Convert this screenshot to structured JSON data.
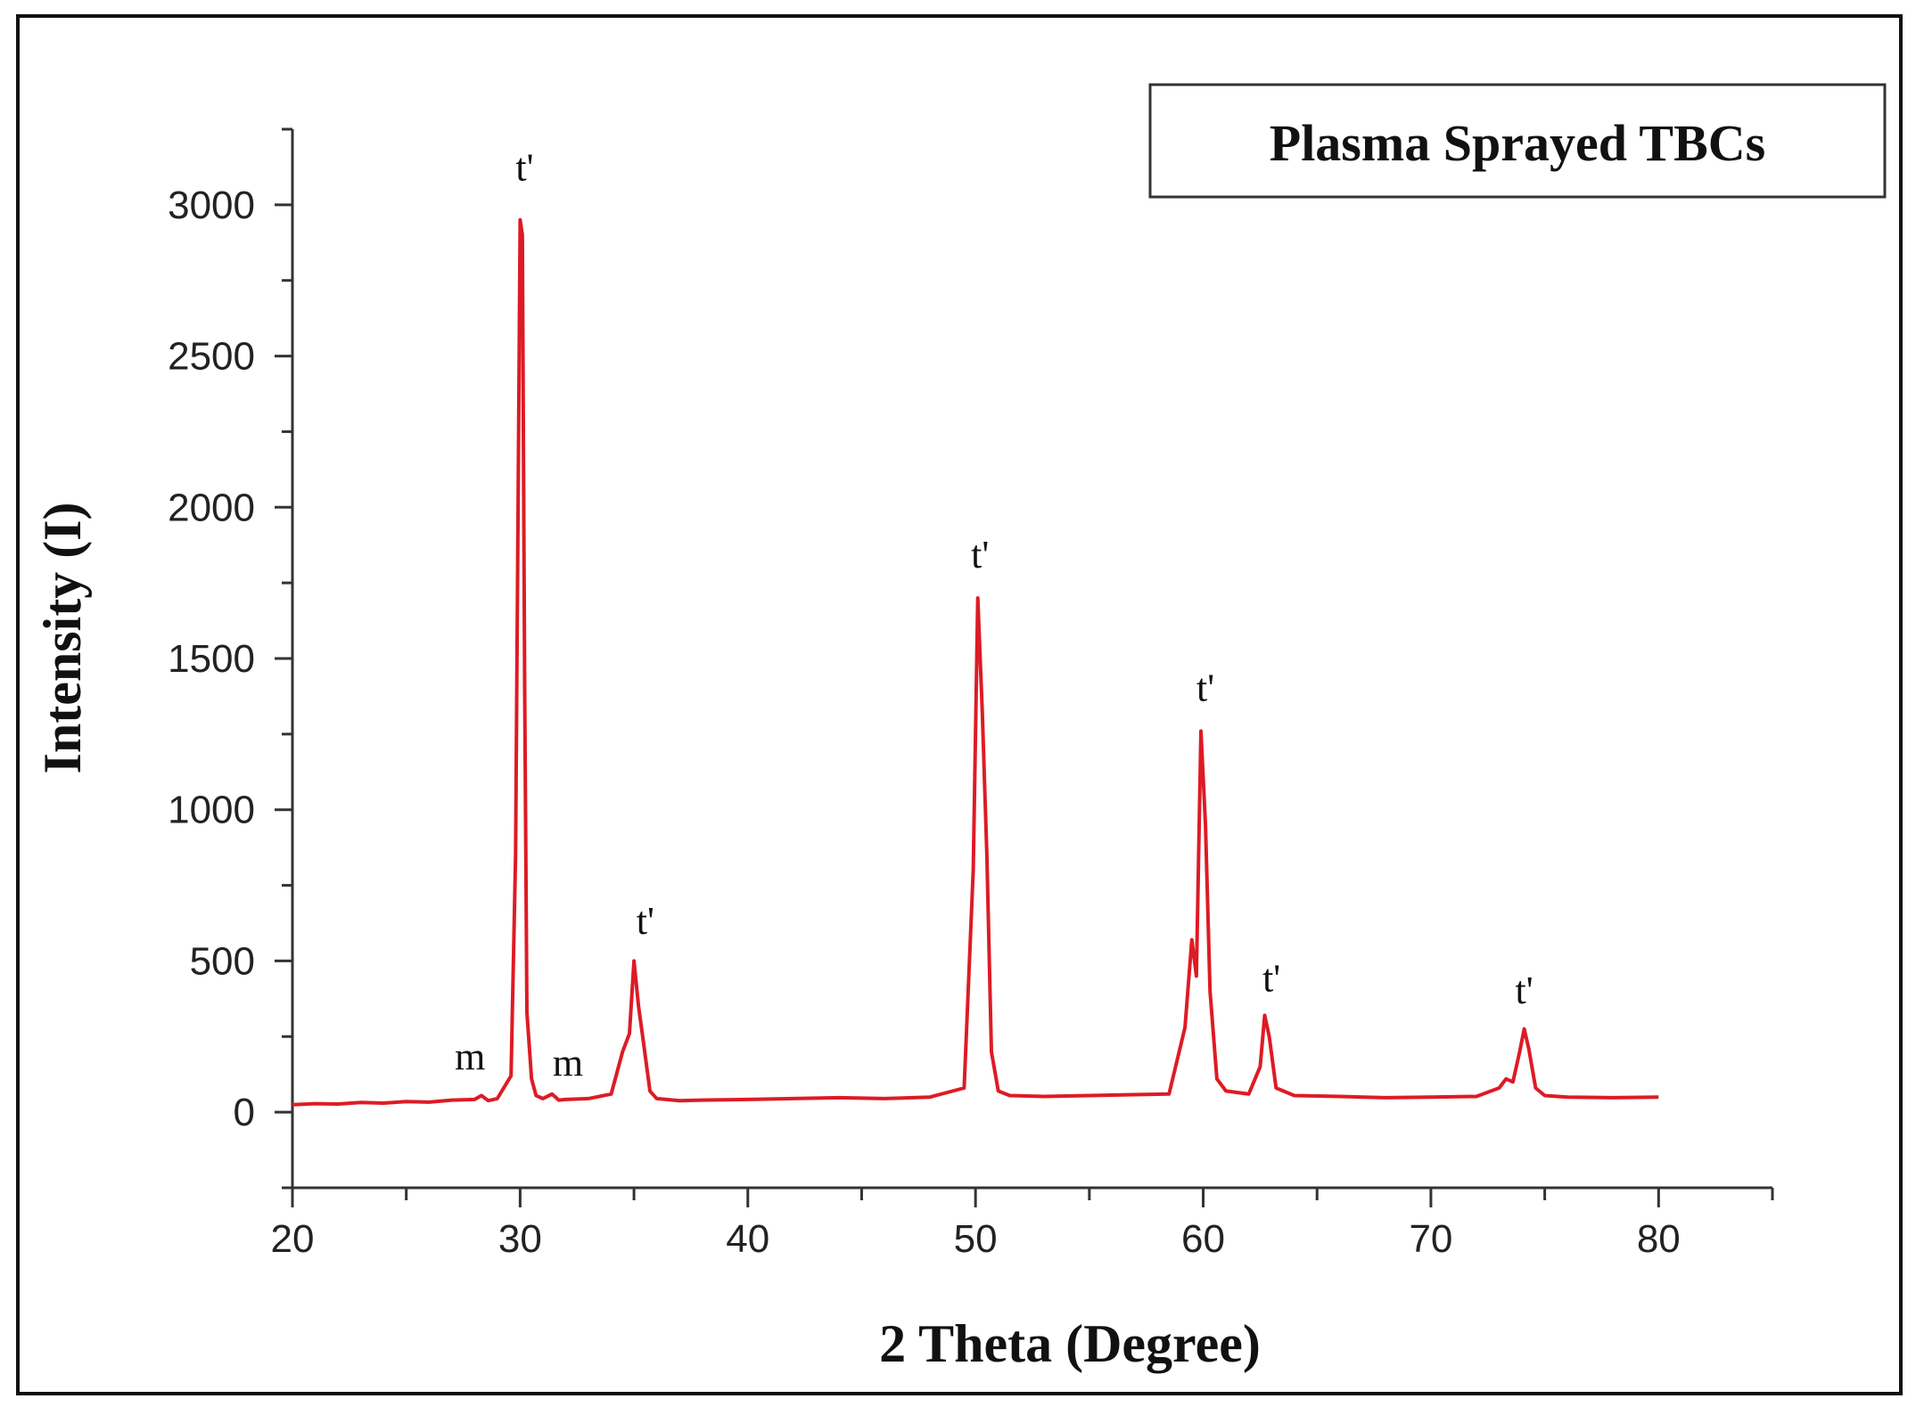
{
  "chart_data": {
    "type": "line",
    "xlabel": "2 Theta (Degree)",
    "ylabel": "Intensity (I)",
    "xlim": [
      20,
      85
    ],
    "ylim": [
      -250,
      3250
    ],
    "xticks": [
      "20",
      "30",
      "40",
      "50",
      "60",
      "70",
      "80"
    ],
    "yticks": [
      "0",
      "500",
      "1000",
      "1500",
      "2000",
      "2500",
      "3000"
    ],
    "legend": {
      "label": "Plasma Sprayed TBCs",
      "position": "top-right"
    },
    "grid": false,
    "color": "#dd1b25",
    "series": [
      {
        "name": "Plasma Sprayed TBCs",
        "x": [
          20,
          21,
          22,
          23,
          24,
          25,
          26,
          27,
          28,
          28.3,
          28.6,
          29,
          29.6,
          29.8,
          30.0,
          30.1,
          30.2,
          30.3,
          30.5,
          30.7,
          31.0,
          31.4,
          31.7,
          32,
          33,
          34,
          34.5,
          34.8,
          35.0,
          35.2,
          35.4,
          35.7,
          36,
          37,
          38,
          40,
          42,
          44,
          46,
          48,
          49.5,
          49.9,
          50.1,
          50.3,
          50.5,
          50.7,
          51.0,
          51.5,
          53,
          55,
          57,
          58.5,
          59.2,
          59.5,
          59.7,
          59.9,
          60.1,
          60.3,
          60.6,
          61,
          62,
          62.5,
          62.7,
          62.9,
          63.2,
          64,
          66,
          68,
          70,
          72,
          73,
          73.3,
          73.6,
          73.9,
          74.1,
          74.3,
          74.6,
          75,
          76,
          78,
          80
        ],
        "y": [
          25,
          28,
          27,
          32,
          30,
          35,
          33,
          40,
          42,
          55,
          38,
          45,
          120,
          850,
          2950,
          2900,
          1400,
          330,
          110,
          55,
          45,
          60,
          40,
          42,
          45,
          60,
          200,
          260,
          500,
          350,
          240,
          70,
          45,
          38,
          40,
          42,
          45,
          48,
          45,
          50,
          80,
          800,
          1700,
          1320,
          850,
          200,
          70,
          55,
          52,
          55,
          58,
          60,
          280,
          570,
          450,
          1260,
          950,
          400,
          110,
          70,
          60,
          150,
          320,
          250,
          80,
          55,
          52,
          48,
          50,
          52,
          80,
          110,
          100,
          200,
          275,
          210,
          80,
          55,
          50,
          48,
          50
        ]
      }
    ],
    "annotations": [
      {
        "text": "m",
        "x": 27.8,
        "y": 140
      },
      {
        "text": "t'",
        "x": 30.2,
        "y": 3080
      },
      {
        "text": "m",
        "x": 32.1,
        "y": 120
      },
      {
        "text": "t'",
        "x": 35.5,
        "y": 590
      },
      {
        "text": "t'",
        "x": 50.2,
        "y": 1800
      },
      {
        "text": "t'",
        "x": 60.1,
        "y": 1360
      },
      {
        "text": "t'",
        "x": 63.0,
        "y": 400
      },
      {
        "text": "t'",
        "x": 74.1,
        "y": 360
      }
    ]
  }
}
